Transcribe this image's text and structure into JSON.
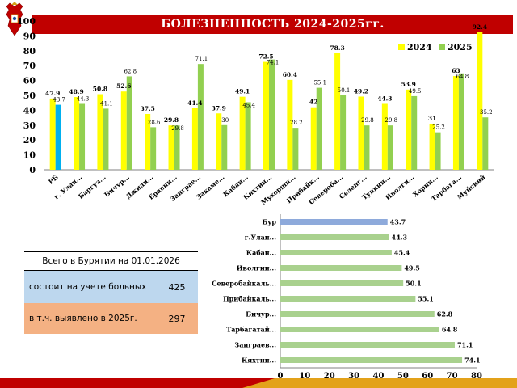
{
  "header": {
    "title": "БОЛЕЗНЕННОСТЬ 2024-2025гг.",
    "emblem_icon": "russian-coat-of-arms"
  },
  "colors": {
    "title_bg": "#c00000",
    "series_2024": "#ffff00",
    "series_2025": "#92d050",
    "rb_2025": "#00b0f0",
    "hbar": "#a9d18e",
    "hbar_highlight": "#8eaadb"
  },
  "stats_table": {
    "title": "Всего в Бурятии на 01.01.2026",
    "rows": [
      {
        "label": "состоит на учете больных",
        "value": "425"
      },
      {
        "label": "в т.ч. выявлено в 2025г.",
        "value": "297"
      }
    ]
  },
  "chart_data": [
    {
      "type": "bar",
      "categories": [
        "РБ",
        "г. Улан...",
        "Баргуз...",
        "Бичур...",
        "Джиди...",
        "Еравни...",
        "Заиграе...",
        "Закаме...",
        "Кабан...",
        "Кяхтин...",
        "Мухорши...",
        "Прибайк...",
        "Северобa...",
        "Селенг...",
        "Тункин...",
        "Иволги...",
        "Хорин...",
        "Тарбага...",
        "Муйский"
      ],
      "series": [
        {
          "name": "2024",
          "values": [
            47.9,
            48.9,
            50.8,
            52.6,
            37.5,
            29.8,
            41.4,
            37.9,
            49.1,
            72.5,
            60.4,
            42,
            78.3,
            49.2,
            44.3,
            53.9,
            31,
            63,
            92.4
          ]
        },
        {
          "name": "2025",
          "values": [
            43.7,
            44.3,
            41.1,
            62.8,
            28.6,
            29.8,
            71.1,
            30,
            45.4,
            74.1,
            28.2,
            55.1,
            50.1,
            29.8,
            29.8,
            49.5,
            25.2,
            64.8,
            35.2
          ]
        }
      ],
      "label_2024": [
        "47.9",
        "48.9",
        "50.8",
        "52.6",
        "37.5",
        "29.8",
        "41.4",
        "37.9",
        "49.1",
        "72.5",
        "60.4",
        "42",
        "78.3",
        "49.2",
        "44.3",
        "53.9",
        "31",
        "63",
        "92.4"
      ],
      "label_2025": [
        "43.7",
        "44.3",
        "41.1",
        "62.8",
        "28.6",
        "29.8",
        "71.1",
        "30",
        "45.4",
        "74.1",
        "28.2",
        "55.1",
        "50.1",
        "29.8",
        "29.8",
        "49.5",
        "25.2",
        "64.8",
        "35.2"
      ],
      "ylim": [
        0,
        100
      ],
      "yticks": [
        "0",
        "10",
        "20",
        "30",
        "40",
        "50",
        "60",
        "70",
        "80",
        "90",
        "100"
      ],
      "legend": "top-right",
      "grid": false
    },
    {
      "type": "bar",
      "orientation": "horizontal",
      "categories": [
        "Бур",
        "г.Улан...",
        "Кабан...",
        "Иволгин...",
        "Северобайкаль...",
        "Прибайкаль...",
        "Бичур...",
        "Тарбагатай...",
        "Заиграев...",
        "Кяхтин..."
      ],
      "values": [
        43.7,
        44.3,
        45.4,
        49.5,
        50.1,
        55.1,
        62.8,
        64.8,
        71.1,
        74.1
      ],
      "labels": [
        "43.7",
        "44.3",
        "45.4",
        "49.5",
        "50.1",
        "55.1",
        "62.8",
        "64.8",
        "71.1",
        "74.1"
      ],
      "xlim": [
        0,
        80
      ],
      "xticks": [
        "0",
        "10",
        "20",
        "30",
        "40",
        "50",
        "60",
        "70",
        "80"
      ],
      "grid": false
    }
  ]
}
